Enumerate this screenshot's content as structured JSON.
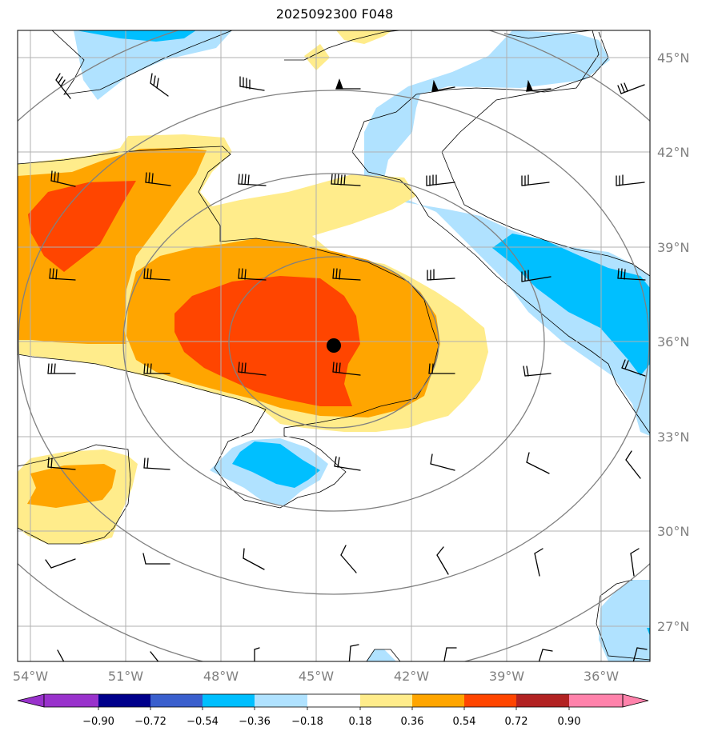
{
  "title": "2025092300 F048",
  "map": {
    "lon_labels": [
      "54°W",
      "51°W",
      "48°W",
      "45°W",
      "42°W",
      "39°W",
      "36°W"
    ],
    "lat_labels": [
      "45°N",
      "42°N",
      "39°N",
      "36°N",
      "33°N",
      "30°N",
      "27°N"
    ],
    "center_marker": {
      "lon": "44.5°W",
      "lat": "35.9°N"
    }
  },
  "colorbar": {
    "colors": [
      "#9932cc",
      "#00008b",
      "#3a5fcd",
      "#00bfff",
      "#b0e2ff",
      "#ffffff",
      "#ffec8b",
      "#ffa500",
      "#ff4500",
      "#b22222",
      "#ff82ab"
    ],
    "tick_labels": [
      "−0.90",
      "−0.72",
      "−0.54",
      "−0.36",
      "−0.18",
      "0.18",
      "0.36",
      "0.54",
      "0.72",
      "0.90"
    ]
  },
  "colors": {
    "grid": "#b0b0b0",
    "range_rings": "#808080",
    "coast": "#000000"
  }
}
